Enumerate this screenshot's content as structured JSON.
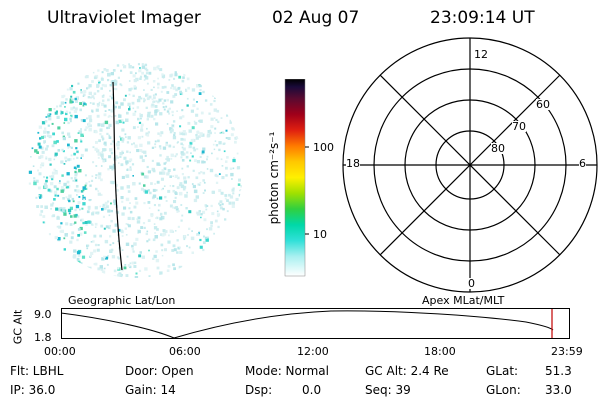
{
  "header": {
    "instrument": "Ultraviolet Imager",
    "date": "02 Aug 07",
    "time": "23:09:14 UT"
  },
  "colorbar": {
    "label": "photon cm⁻²s⁻¹",
    "tick_labels": [
      "100",
      "10"
    ]
  },
  "polar_plot": {
    "mlt_labels": {
      "top": "12",
      "right": "6",
      "bottom": "0",
      "left": "18"
    },
    "lat_labels": [
      "60",
      "70",
      "80"
    ]
  },
  "timeline": {
    "title_left": "Geographic Lat/Lon",
    "title_right": "Apex MLat/MLT",
    "axis_label": "GC Alt",
    "y_ticks": [
      "9.0",
      "1.8"
    ],
    "x_ticks": [
      "00:00",
      "06:00",
      "12:00",
      "18:00",
      "23:59"
    ],
    "marker_color": "#c00000"
  },
  "status": {
    "filter": "Flt: LBHL",
    "ip": "IP: 36.0",
    "door": "Door: Open",
    "gain": "Gain: 14",
    "mode": "Mode: Normal",
    "dsp_label": "Dsp:",
    "dsp_value": "0.0",
    "gc_alt": "GC Alt: 2.4 Re",
    "seq": "Seq: 39",
    "glat": "GLat:",
    "glat_value": "51.3",
    "glon": "GLon:",
    "glon_value": "33.0"
  }
}
